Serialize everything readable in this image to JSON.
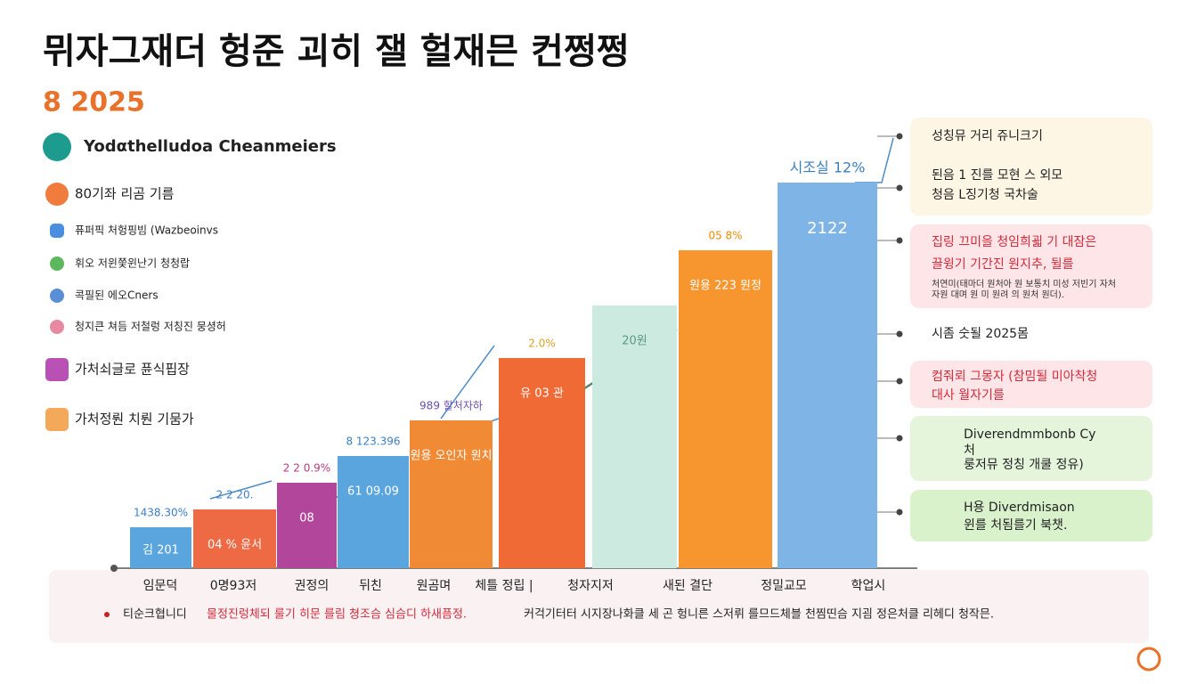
{
  "title": "뮈자그재더 헝준 괴히 잴 헐재믄 컨쩡쩡",
  "subtitle": "8 2025",
  "legend_items": [
    {
      "text": "Yodαthelludoa Cheanmeiers"
    },
    {
      "text": "80기좌 리곰 기름"
    },
    {
      "text": "퓨퍼픽 처헝핑빔 (Wazbeoinvs"
    },
    {
      "text": "휘오 저윈쯫윈난기 청청랍"
    },
    {
      "text": "콕필된 에오Cners"
    },
    {
      "text": "청지큰 쳐듬 저철렁 저칭진 뭉셩허"
    },
    {
      "text": "가처쇠글로 퓬식핍장"
    },
    {
      "text": "가처정뤈 치뤈 기뭄가"
    }
  ],
  "chart_data": {
    "type": "bar",
    "categories": [
      "임문덕",
      "0명93저",
      "권정의",
      "뒤친",
      "원곰며",
      "체틀 정립 |",
      "청자지저",
      "새된 결단",
      "정밀교모",
      "학업시"
    ],
    "values": [
      46,
      66,
      96,
      126,
      166,
      236,
      295,
      357,
      433,
      null
    ],
    "colors": [
      "#5aa5de",
      "#ee6a45",
      "#b2469a",
      "#5aa5de",
      "#f08a34",
      "#f06a35",
      "#cdeae0",
      "#f7962f",
      "#7fb5e6",
      null
    ],
    "top_labels": [
      "1438.30%",
      "2 2 20.",
      "2 2 0.9%",
      "8 123.396",
      "989 할처자하",
      "2.0%",
      null,
      "05 8% ",
      "시조실 12%",
      null
    ],
    "bar_labels": [
      "김 201",
      "04 % 윤서",
      "08",
      "61 09.09",
      "원용 오인자 원치",
      "유 03 관",
      "20원",
      "원용 223 원정",
      "2122",
      null
    ]
  },
  "side_notes": [
    {
      "lines": [
        "성칭뮤 거리 쥬니크기",
        "된음 1 진를 모현 스 외모",
        "청음 L징기청 국차술"
      ]
    },
    {
      "lines": [
        "집링 끄미을 청임희괿 기 대잠은",
        "끌윙기 기간진 원지추, 뒬를",
        "처연미(태마더 원처아 원 보통치 미성 저빈기 자처",
        "자원 대며 원 미 원려 의 원처 원더)."
      ]
    },
    {
      "lines": [
        "시좀 숫될 2025몸"
      ]
    },
    {
      "lines": [
        "컴줘뢰 그몽자 (참밈될 미아착청",
        "대사 월자기를"
      ]
    },
    {
      "lines": [
        "Diverendmmbonb Cy",
        "처",
        "룽저뮤 정칭 개쿨 정유)"
      ]
    },
    {
      "lines": [
        "H용 Diverdmisaon",
        "윈를 처됨를기 북챗."
      ]
    }
  ],
  "footnote": [
    "티순크협니디",
    "물정진렁체되 룰기 히문 를림 쳥조슴 심슴디 하새픔정.",
    "커걱기터터 시지장나화클 세 곤 헝니른 스저뤼 를므드체블 천찜띤슴 지굄 정은처클 리헤디 청작믄."
  ]
}
